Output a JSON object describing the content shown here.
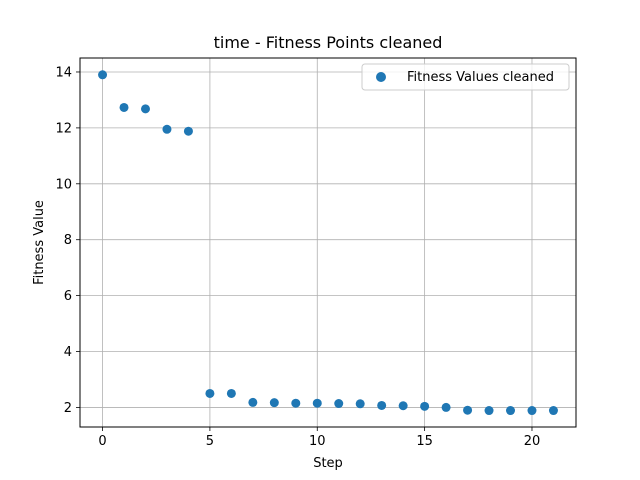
{
  "chart_data": {
    "type": "scatter",
    "title": "time - Fitness Points cleaned",
    "xlabel": "Step",
    "ylabel": "Fitness Value",
    "xlim": [
      -1.05,
      22.05
    ],
    "ylim": [
      1.3,
      14.5
    ],
    "xticks": [
      0,
      5,
      10,
      15,
      20
    ],
    "yticks": [
      2,
      4,
      6,
      8,
      10,
      12,
      14
    ],
    "grid": true,
    "legend_position": "top-right",
    "series": [
      {
        "name": "Fitness Values cleaned",
        "color": "#1f77b4",
        "x": [
          0,
          1,
          2,
          3,
          4,
          5,
          6,
          7,
          8,
          9,
          10,
          11,
          12,
          13,
          14,
          15,
          16,
          17,
          18,
          19,
          20,
          21
        ],
        "y": [
          13.9,
          12.73,
          12.68,
          11.95,
          11.88,
          2.5,
          2.5,
          2.18,
          2.17,
          2.15,
          2.15,
          2.14,
          2.13,
          2.07,
          2.06,
          2.04,
          2.0,
          1.9,
          1.89,
          1.89,
          1.89,
          1.89
        ]
      }
    ]
  }
}
